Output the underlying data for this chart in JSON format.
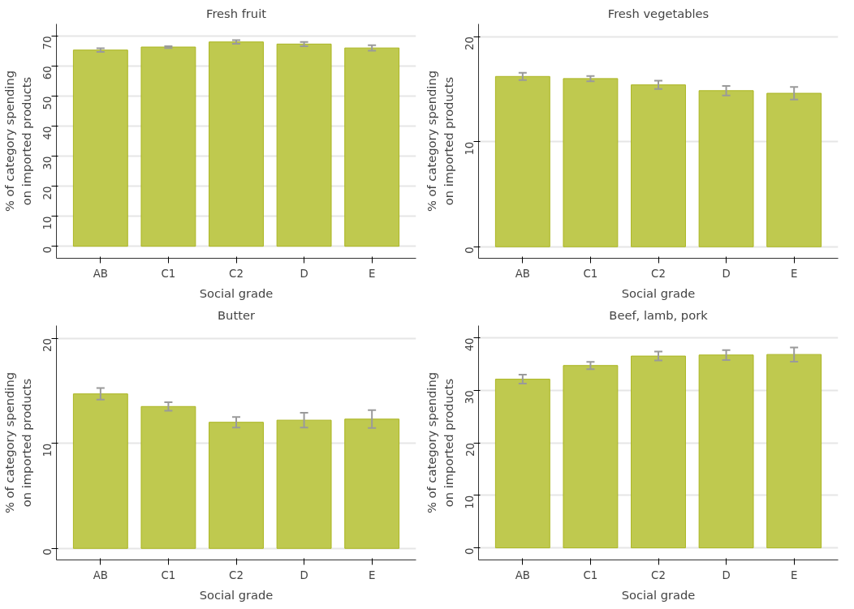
{
  "chart_data": [
    {
      "type": "bar",
      "title": "Fresh fruit",
      "xlabel": "Social grade",
      "ylabel": "% of category spending\non imported products",
      "categories": [
        "AB",
        "C1",
        "C2",
        "D",
        "E"
      ],
      "values": [
        65.3,
        66.3,
        68.0,
        67.3,
        66.0
      ],
      "errors": [
        0.6,
        0.3,
        0.6,
        0.7,
        0.9
      ],
      "color": "#bfc94f",
      "ylim": [
        -4,
        74
      ],
      "yticks": [
        0,
        10,
        20,
        30,
        40,
        50,
        60,
        70
      ],
      "grid": "y"
    },
    {
      "type": "bar",
      "title": "Fresh vegetables",
      "xlabel": "Social grade",
      "ylabel": "% of category spending\non imported products",
      "categories": [
        "AB",
        "C1",
        "C2",
        "D",
        "E"
      ],
      "values": [
        16.2,
        16.0,
        15.4,
        14.85,
        14.6
      ],
      "errors": [
        0.35,
        0.25,
        0.4,
        0.45,
        0.6
      ],
      "color": "#bfc94f",
      "ylim": [
        -1.1,
        21.2
      ],
      "yticks": [
        0,
        10,
        20
      ],
      "grid": "y"
    },
    {
      "type": "bar",
      "title": "Butter",
      "xlabel": "Social grade",
      "ylabel": "% of category spending\non imported products",
      "categories": [
        "AB",
        "C1",
        "C2",
        "D",
        "E"
      ],
      "values": [
        14.7,
        13.5,
        12.0,
        12.2,
        12.3
      ],
      "errors": [
        0.55,
        0.4,
        0.5,
        0.7,
        0.85
      ],
      "color": "#bfc94f",
      "ylim": [
        -1.1,
        21.2
      ],
      "yticks": [
        0,
        10,
        20
      ],
      "grid": "y"
    },
    {
      "type": "bar",
      "title": "Beef, lamb, pork",
      "xlabel": "Social grade",
      "ylabel": "% of category spending\non imported products",
      "categories": [
        "AB",
        "C1",
        "C2",
        "D",
        "E"
      ],
      "values": [
        32.1,
        34.7,
        36.5,
        36.7,
        36.8
      ],
      "errors": [
        0.85,
        0.7,
        0.85,
        0.95,
        1.35
      ],
      "color": "#bfc94f",
      "ylim": [
        -2.3,
        42.3
      ],
      "yticks": [
        0,
        10,
        20,
        30,
        40
      ],
      "grid": "y"
    }
  ]
}
